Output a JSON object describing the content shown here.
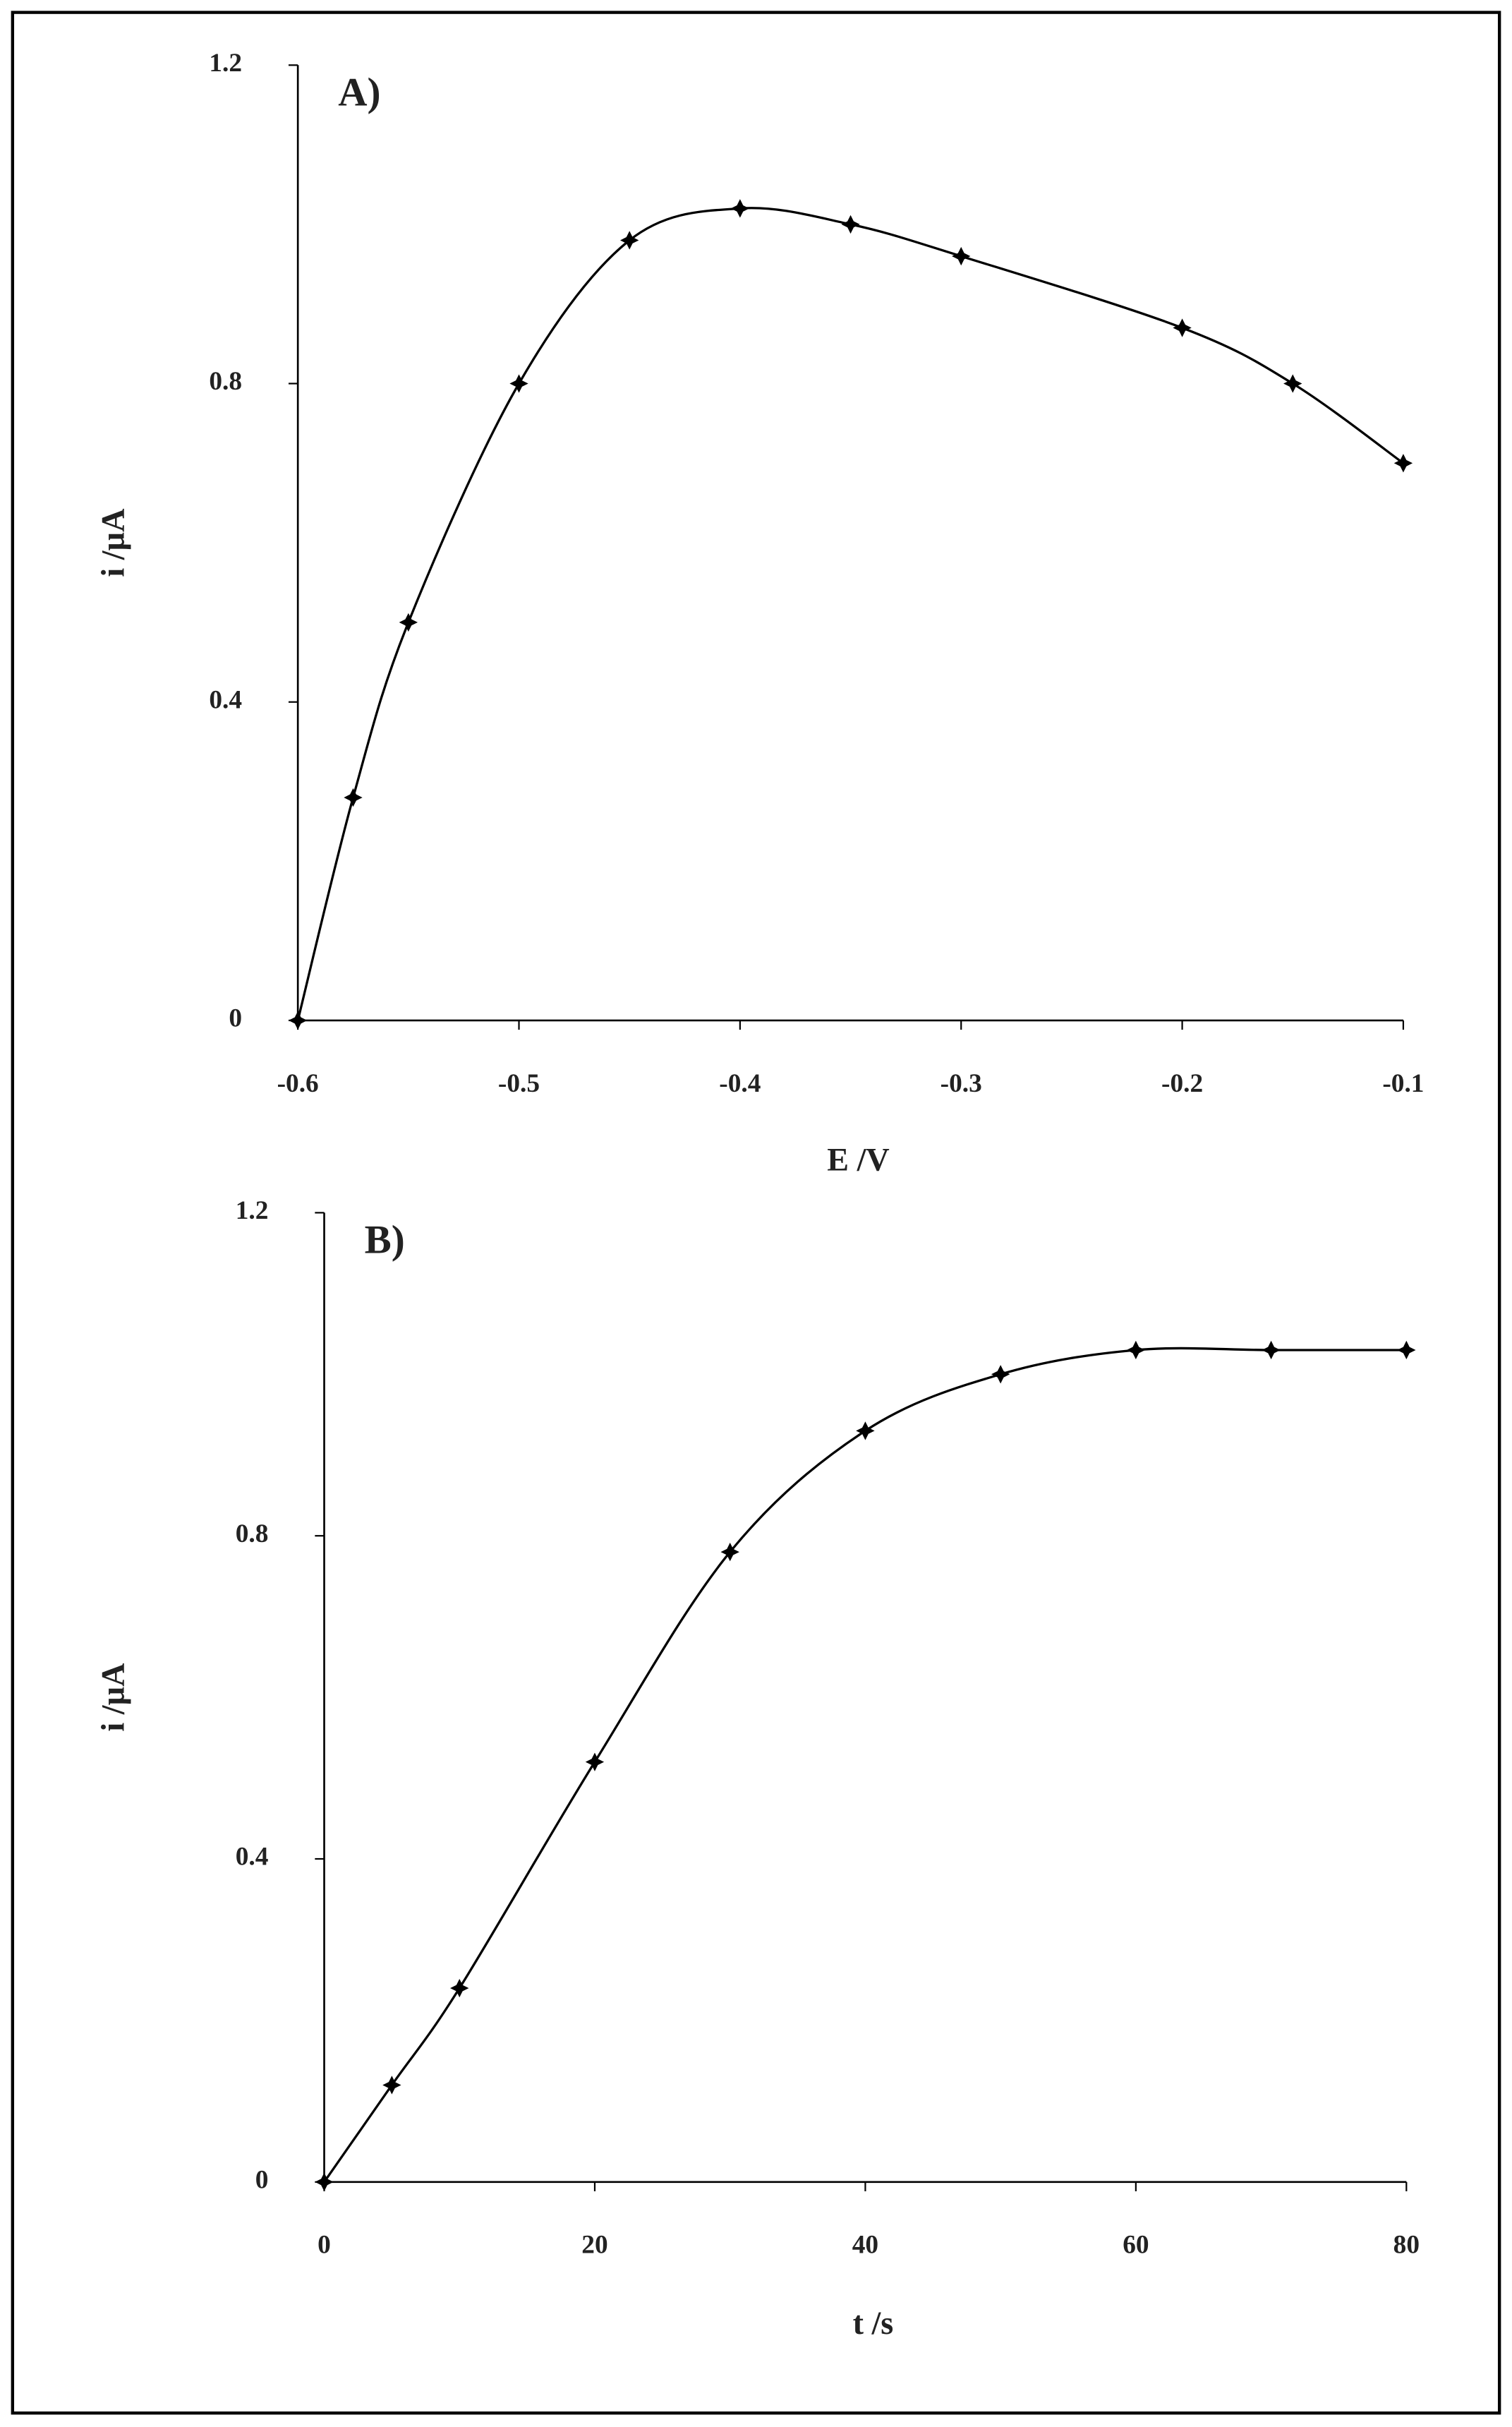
{
  "chart_data": [
    {
      "type": "line",
      "title": "A)",
      "xlabel": "E  /V",
      "ylabel": "i /µA",
      "color": "#000000",
      "x": [
        -0.6,
        -0.575,
        -0.55,
        -0.5,
        -0.45,
        -0.4,
        -0.35,
        -0.3,
        -0.2,
        -0.15,
        -0.1
      ],
      "values": [
        0,
        0.28,
        0.5,
        0.8,
        0.98,
        1.02,
        1.0,
        0.96,
        0.87,
        0.8,
        0.7
      ],
      "xlim": [
        -0.6,
        -0.1
      ],
      "xticks": [
        -0.6,
        -0.5,
        -0.4,
        -0.3,
        -0.2,
        -0.1
      ],
      "ylim": [
        0,
        1.2
      ],
      "yticks": [
        0,
        0.4,
        0.8,
        1.2
      ]
    },
    {
      "type": "line",
      "title": "B)",
      "xlabel": "t /s",
      "ylabel": "i /µA",
      "color": "#000000",
      "x": [
        0,
        5,
        10,
        20,
        30,
        40,
        50,
        60,
        70,
        80
      ],
      "values": [
        0,
        0.12,
        0.24,
        0.52,
        0.78,
        0.93,
        1.0,
        1.03,
        1.03,
        1.03
      ],
      "xlim": [
        0,
        80
      ],
      "xticks": [
        0,
        20,
        40,
        60,
        80
      ],
      "ylim": [
        0,
        1.2
      ],
      "yticks": [
        0,
        0.4,
        0.8,
        1.2
      ]
    }
  ]
}
